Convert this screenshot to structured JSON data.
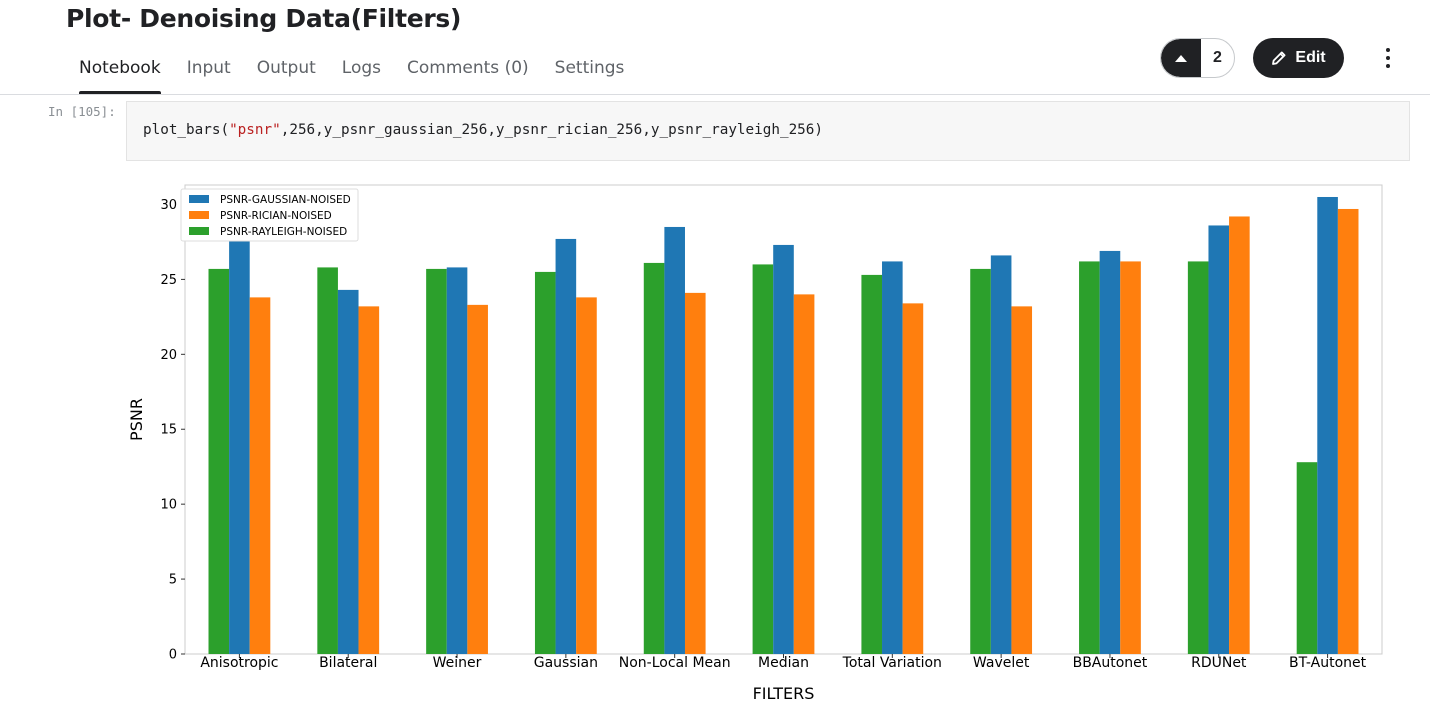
{
  "notebook": {
    "title": "Plot- Denoising Data(Filters)",
    "tabs": [
      {
        "label": "Notebook",
        "active": true
      },
      {
        "label": "Input",
        "active": false
      },
      {
        "label": "Output",
        "active": false
      },
      {
        "label": "Logs",
        "active": false
      },
      {
        "label": "Comments (0)",
        "active": false
      },
      {
        "label": "Settings",
        "active": false
      }
    ],
    "vote_count": "2",
    "edit_label": "Edit"
  },
  "icons": {
    "vote": "caret-up-icon",
    "edit": "pencil-icon",
    "more": "more-vertical-icon"
  },
  "colors": {
    "dark": "#202124",
    "gaussian": "#1f77b4",
    "rician": "#ff7f0e",
    "rayleigh": "#2ca02c"
  },
  "cell": {
    "prompt": "In [105]:",
    "code_before": "plot_bars(",
    "code_string": "\"psnr\"",
    "code_after": ",256,y_psnr_gaussian_256,y_psnr_rician_256,y_psnr_rayleigh_256)"
  },
  "chart_data": {
    "type": "bar",
    "title": "",
    "xlabel": "FILTERS",
    "ylabel": "PSNR",
    "ylim": [
      0,
      31.3
    ],
    "yticks": [
      0,
      5,
      10,
      15,
      20,
      25,
      30
    ],
    "grid": false,
    "legend_position": "top-left",
    "categories": [
      "Anisotropic",
      "Bilateral",
      "Weiner",
      "Gaussian",
      "Non-Local Mean",
      "Median",
      "Total Variation",
      "Wavelet",
      "BBAutonet",
      "RDUNet",
      "BT-Autonet"
    ],
    "series": [
      {
        "name": "PSNR-GAUSSIAN-NOISED",
        "color": "#1f77b4",
        "values": [
          27.7,
          24.3,
          25.8,
          27.7,
          28.5,
          27.3,
          26.2,
          26.6,
          26.9,
          28.6,
          30.5
        ]
      },
      {
        "name": "PSNR-RICIAN-NOISED",
        "color": "#ff7f0e",
        "values": [
          23.8,
          23.2,
          23.3,
          23.8,
          24.1,
          24.0,
          23.4,
          23.2,
          26.2,
          29.2,
          29.7
        ]
      },
      {
        "name": "PSNR-RAYLEIGH-NOISED",
        "color": "#2ca02c",
        "values": [
          25.7,
          25.8,
          25.7,
          25.5,
          26.1,
          26.0,
          25.3,
          25.7,
          26.2,
          26.2,
          12.8
        ]
      }
    ],
    "bar_order": [
      "PSNR-RAYLEIGH-NOISED",
      "PSNR-GAUSSIAN-NOISED",
      "PSNR-RICIAN-NOISED"
    ]
  }
}
